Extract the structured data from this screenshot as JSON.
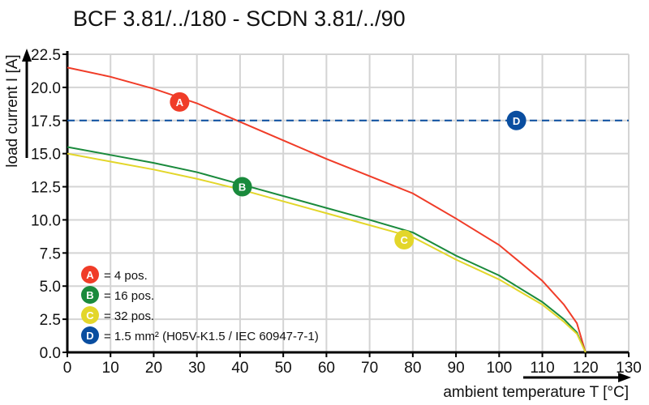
{
  "chart_data": {
    "type": "line",
    "title": "BCF 3.81/../180 - SCDN 3.81/../90",
    "xlabel": "ambient temperature T [°C]",
    "ylabel": "load current I [A]",
    "xlim": [
      0,
      130
    ],
    "ylim": [
      0,
      22.5
    ],
    "xticks": [
      "0",
      "10",
      "20",
      "30",
      "40",
      "50",
      "60",
      "70",
      "80",
      "90",
      "100",
      "110",
      "120",
      "130"
    ],
    "yticks": [
      "0.0",
      "2.5",
      "5.0",
      "7.5",
      "10.0",
      "12.5",
      "15.0",
      "17.5",
      "20.0",
      "22.5"
    ],
    "grid": true,
    "legend_position": "bottom-left",
    "series": [
      {
        "marker": "A",
        "name": "= 4 pos.",
        "color": "#f03c28",
        "style": "solid",
        "marker_at": [
          26,
          18.9
        ],
        "x": [
          0,
          10,
          20,
          30,
          40,
          50,
          60,
          70,
          80,
          90,
          100,
          110,
          115,
          118,
          120
        ],
        "y": [
          21.5,
          20.8,
          19.9,
          18.8,
          17.4,
          16.0,
          14.6,
          13.3,
          12.0,
          10.1,
          8.1,
          5.4,
          3.6,
          2.2,
          0
        ]
      },
      {
        "marker": "B",
        "name": "= 16 pos.",
        "color": "#1a8a3c",
        "style": "solid",
        "marker_at": [
          40.5,
          12.5
        ],
        "x": [
          0,
          10,
          20,
          30,
          40,
          50,
          60,
          70,
          80,
          90,
          100,
          110,
          115,
          118,
          120
        ],
        "y": [
          15.5,
          14.9,
          14.3,
          13.6,
          12.7,
          11.8,
          10.9,
          10.0,
          9.05,
          7.3,
          5.8,
          3.8,
          2.5,
          1.5,
          0
        ]
      },
      {
        "marker": "C",
        "name": "= 32 pos.",
        "color": "#e3d62a",
        "style": "solid",
        "marker_at": [
          78,
          8.5
        ],
        "x": [
          0,
          10,
          20,
          30,
          40,
          50,
          60,
          70,
          80,
          90,
          100,
          110,
          115,
          118,
          120
        ],
        "y": [
          15.0,
          14.4,
          13.8,
          13.1,
          12.3,
          11.4,
          10.5,
          9.6,
          8.7,
          7.0,
          5.5,
          3.6,
          2.3,
          1.4,
          0
        ]
      },
      {
        "marker": "D",
        "name": "= 1.5 mm² (H05V-K1.5 / IEC 60947-7-1)",
        "color": "#0a4ea0",
        "style": "dashed",
        "marker_at": [
          104,
          17.5
        ],
        "x": [
          0,
          130
        ],
        "y": [
          17.5,
          17.5
        ]
      }
    ]
  }
}
